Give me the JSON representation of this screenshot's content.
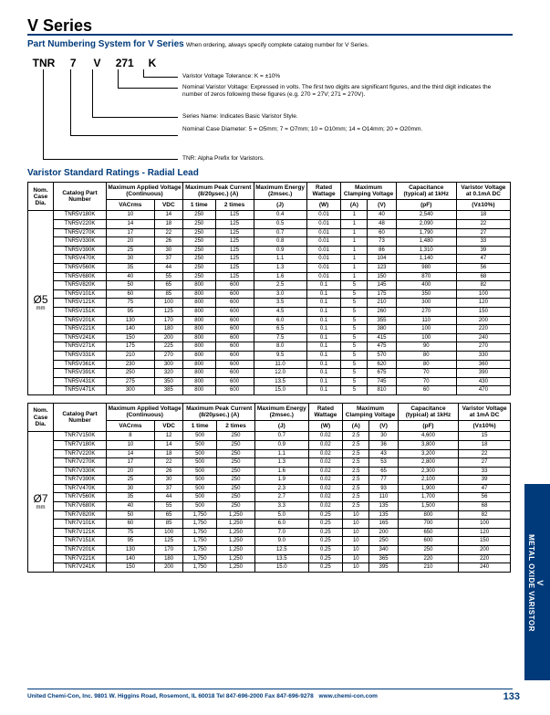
{
  "header": {
    "series_title": "V Series",
    "pn_title": "Part Numbering System for V Series",
    "pn_title_note": "When ordering, always specify complete catalog number for V Series.",
    "code_tnr": "TNR",
    "code_7": "7",
    "code_v": "V",
    "code_271": "271",
    "code_k": "K",
    "desc_k": "Varistor Voltage Tolerance: K = ±10%",
    "desc_271": "Nominal Varistor Voltage: Expressed in volts. The first two digits are significant figures, and the third digit indicates the number of zeros following these figures (e.g. 270 = 27V; 271 = 270V).",
    "desc_v": "Series Name: Indicates Basic Varistor Style.",
    "desc_7": "Nominal Case Diameter: 5 = O5mm; 7 = O7mm; 10 = O10mm; 14 = O14mm; 20 = O20mm.",
    "desc_tnr": "TNR: Alpha Prefix for Varistors."
  },
  "section_title": "Varistor Standard Ratings - Radial Lead",
  "cols": {
    "dia": "Nom. Case Dia.",
    "part": "Catalog Part Number",
    "mav": "Maximum Applied Voltage (Continuous)",
    "vac": "VACrms",
    "vdc": "VDC",
    "mpc": "Maximum Peak Current (8/20µsec.) (A)",
    "t1": "1 time",
    "t2": "2 times",
    "me": "Maximum Energy (2msec.)",
    "j": "(J)",
    "rw": "Rated Wattage",
    "w": "(W)",
    "mcv": "Maximum Clamping Voltage",
    "a": "(A)",
    "v": "(V)",
    "cap": "Capacitance (typical) at 1kHz",
    "pf": "(pF)",
    "vv1": "Varistor Voltage at 0.1mA DC",
    "vv2": "Varistor Voltage at 1mA DC",
    "vpm": "(V±10%)"
  },
  "table5": {
    "dia": "Ø5\nmm",
    "rows": [
      [
        "TNR5V180K",
        "10",
        "14",
        "250",
        "125",
        "0.4",
        "0.01",
        "1",
        "40",
        "2,540",
        "18"
      ],
      [
        "TNR5V220K",
        "14",
        "18",
        "250",
        "125",
        "0.5",
        "0.01",
        "1",
        "48",
        "2,090",
        "22"
      ],
      [
        "TNR5V270K",
        "17",
        "22",
        "250",
        "125",
        "0.7",
        "0.01",
        "1",
        "60",
        "1,790",
        "27"
      ],
      [
        "TNR5V330K",
        "20",
        "26",
        "250",
        "125",
        "0.8",
        "0.01",
        "1",
        "73",
        "1,480",
        "33"
      ],
      [
        "TNR5V390K",
        "25",
        "30",
        "250",
        "125",
        "0.9",
        "0.01",
        "1",
        "86",
        "1,310",
        "39"
      ],
      [
        "TNR5V470K",
        "30",
        "37",
        "250",
        "125",
        "1.1",
        "0.01",
        "1",
        "104",
        "1,140",
        "47"
      ],
      [
        "TNR5V560K",
        "35",
        "44",
        "250",
        "125",
        "1.3",
        "0.01",
        "1",
        "123",
        "980",
        "56"
      ],
      [
        "TNR5V680K",
        "40",
        "55",
        "250",
        "125",
        "1.6",
        "0.01",
        "1",
        "150",
        "870",
        "68"
      ],
      [
        "TNR5V820K",
        "50",
        "65",
        "800",
        "600",
        "2.5",
        "0.1",
        "5",
        "145",
        "400",
        "82"
      ],
      [
        "TNR5V101K",
        "60",
        "85",
        "800",
        "600",
        "3.0",
        "0.1",
        "5",
        "175",
        "350",
        "100"
      ],
      [
        "TNR5V121K",
        "75",
        "100",
        "800",
        "600",
        "3.5",
        "0.1",
        "5",
        "210",
        "300",
        "120"
      ],
      [
        "TNR5V151K",
        "95",
        "125",
        "800",
        "600",
        "4.5",
        "0.1",
        "5",
        "260",
        "270",
        "150"
      ],
      [
        "TNR5V201K",
        "130",
        "170",
        "800",
        "600",
        "6.0",
        "0.1",
        "5",
        "355",
        "110",
        "200"
      ],
      [
        "TNR5V221K",
        "140",
        "180",
        "800",
        "600",
        "6.5",
        "0.1",
        "5",
        "380",
        "100",
        "220"
      ],
      [
        "TNR5V241K",
        "150",
        "200",
        "800",
        "600",
        "7.5",
        "0.1",
        "5",
        "415",
        "100",
        "240"
      ],
      [
        "TNR5V271K",
        "175",
        "225",
        "800",
        "600",
        "8.0",
        "0.1",
        "5",
        "475",
        "90",
        "270"
      ],
      [
        "TNR5V331K",
        "210",
        "270",
        "800",
        "600",
        "9.5",
        "0.1",
        "5",
        "570",
        "80",
        "330"
      ],
      [
        "TNR5V361K",
        "230",
        "300",
        "800",
        "600",
        "11.0",
        "0.1",
        "5",
        "620",
        "80",
        "360"
      ],
      [
        "TNR5V391K",
        "250",
        "320",
        "800",
        "600",
        "12.0",
        "0.1",
        "5",
        "675",
        "70",
        "390"
      ],
      [
        "TNR5V431K",
        "275",
        "350",
        "800",
        "600",
        "13.5",
        "0.1",
        "5",
        "745",
        "70",
        "430"
      ],
      [
        "TNR5V471K",
        "300",
        "385",
        "800",
        "600",
        "15.0",
        "0.1",
        "5",
        "810",
        "60",
        "470"
      ]
    ]
  },
  "table7": {
    "dia": "Ø7\nmm",
    "rows": [
      [
        "TNR7V150K",
        "8",
        "12",
        "500",
        "250",
        "0.7",
        "0.02",
        "2.5",
        "30",
        "4,600",
        "15"
      ],
      [
        "TNR7V180K",
        "10",
        "14",
        "500",
        "250",
        "0.9",
        "0.02",
        "2.5",
        "36",
        "3,800",
        "18"
      ],
      [
        "TNR7V220K",
        "14",
        "18",
        "500",
        "250",
        "1.1",
        "0.02",
        "2.5",
        "43",
        "3,200",
        "22"
      ],
      [
        "TNR7V270K",
        "17",
        "22",
        "500",
        "250",
        "1.3",
        "0.02",
        "2.5",
        "53",
        "2,800",
        "27"
      ],
      [
        "TNR7V330K",
        "20",
        "26",
        "500",
        "250",
        "1.6",
        "0.02",
        "2.5",
        "65",
        "2,300",
        "33"
      ],
      [
        "TNR7V390K",
        "25",
        "30",
        "500",
        "250",
        "1.9",
        "0.02",
        "2.5",
        "77",
        "2,100",
        "39"
      ],
      [
        "TNR7V470K",
        "30",
        "37",
        "500",
        "250",
        "2.3",
        "0.02",
        "2.5",
        "93",
        "1,900",
        "47"
      ],
      [
        "TNR7V560K",
        "35",
        "44",
        "500",
        "250",
        "2.7",
        "0.02",
        "2.5",
        "110",
        "1,700",
        "56"
      ],
      [
        "TNR7V680K",
        "40",
        "55",
        "500",
        "250",
        "3.3",
        "0.02",
        "2.5",
        "135",
        "1,500",
        "68"
      ],
      [
        "TNR7V820K",
        "50",
        "65",
        "1,750",
        "1,250",
        "5.0",
        "0.25",
        "10",
        "135",
        "800",
        "82"
      ],
      [
        "TNR7V101K",
        "60",
        "85",
        "1,750",
        "1,250",
        "6.0",
        "0.25",
        "10",
        "165",
        "700",
        "100"
      ],
      [
        "TNR7V121K",
        "75",
        "100",
        "1,750",
        "1,250",
        "7.0",
        "0.25",
        "10",
        "200",
        "650",
        "120"
      ],
      [
        "TNR7V151K",
        "95",
        "125",
        "1,750",
        "1,250",
        "9.0",
        "0.25",
        "10",
        "250",
        "600",
        "150"
      ],
      [
        "TNR7V201K",
        "130",
        "170",
        "1,750",
        "1,250",
        "12.5",
        "0.25",
        "10",
        "340",
        "250",
        "200"
      ],
      [
        "TNR7V221K",
        "140",
        "180",
        "1,750",
        "1,250",
        "13.5",
        "0.25",
        "10",
        "365",
        "220",
        "220"
      ],
      [
        "TNR7V241K",
        "150",
        "200",
        "1,750",
        "1,250",
        "15.0",
        "0.25",
        "10",
        "395",
        "210",
        "240"
      ]
    ]
  },
  "side_tab": {
    "line1": "V",
    "line2": "METAL OXIDE VARISTOR"
  },
  "footer": {
    "text": "United Chemi-Con, Inc. 9801 W. Higgins Road, Rosemont, IL 60018  Tel 847-696-2000  Fax 847-696-9278",
    "url": "www.chemi-con.com",
    "page": "133"
  },
  "colors": {
    "blue": "#003a7a"
  }
}
